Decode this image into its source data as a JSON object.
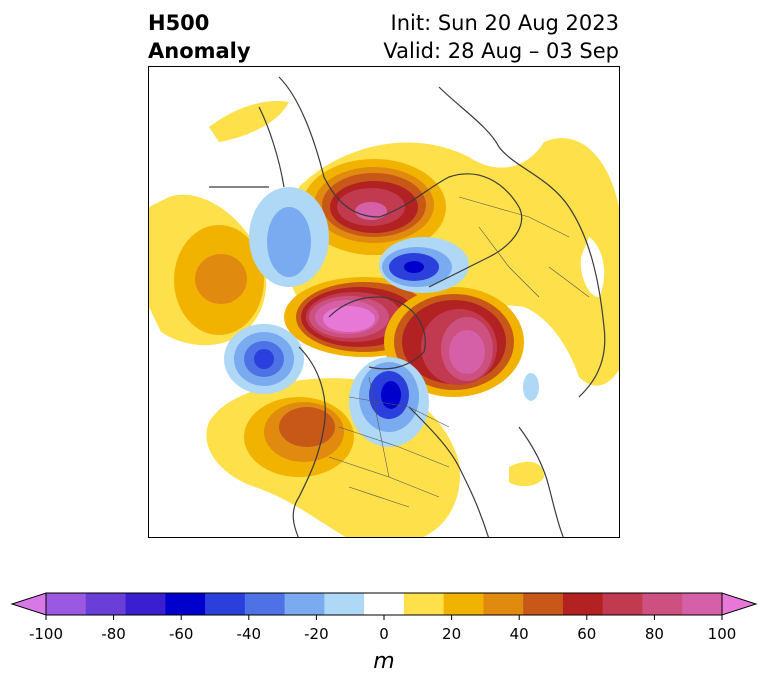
{
  "title": {
    "variable": "H500",
    "subtitle": "Anomaly",
    "init": "Init: Sun 20 Aug 2023",
    "valid": "Valid: 28 Aug – 03 Sep"
  },
  "map": {
    "projection": "north-polar-stereographic",
    "field": "500 hPa geopotential height anomaly"
  },
  "colorbar": {
    "unit_label": "m",
    "ticks": [
      "-100",
      "-80",
      "-60",
      "-40",
      "-20",
      "0",
      "20",
      "40",
      "60",
      "80",
      "100"
    ],
    "extend": "both",
    "colors": [
      "#d778e6",
      "#9b58e0",
      "#6a3fd8",
      "#3a1fd0",
      "#0000cc",
      "#2a3fdc",
      "#4e72e6",
      "#7aaaf0",
      "#aed8f6",
      "#ffffff",
      "#fde04a",
      "#f2b300",
      "#e08b10",
      "#c85818",
      "#b22222",
      "#c23a50",
      "#cc5080",
      "#d660a8",
      "#e878d8"
    ]
  }
}
